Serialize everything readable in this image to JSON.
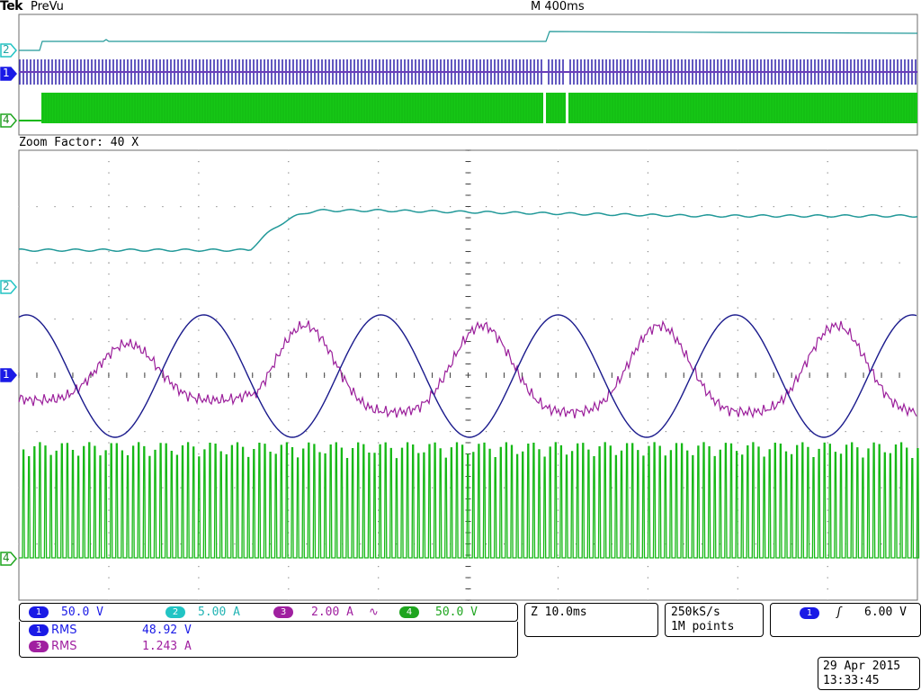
{
  "header": {
    "brand": "Tek",
    "mode": "PreVu",
    "timebase": "M 400ms"
  },
  "zoom": {
    "label": "Zoom Factor: 40 X"
  },
  "markers": {
    "overview": [
      "2",
      "1",
      "4"
    ],
    "zoom": [
      "2",
      "1",
      "4"
    ]
  },
  "channels": [
    {
      "num": "1",
      "scale": "50.0 V",
      "color": "#1a1ae6"
    },
    {
      "num": "2",
      "scale": "5.00 A",
      "color": "#22c4c4"
    },
    {
      "num": "3",
      "scale": "2.00 A",
      "extra": "∿",
      "color": "#a020a0"
    },
    {
      "num": "4",
      "scale": "50.0 V",
      "color": "#1fa51f"
    }
  ],
  "measurements": [
    {
      "num": "1",
      "type": "RMS",
      "value": "48.92 V",
      "color": "#1a1ae6"
    },
    {
      "num": "3",
      "type": "RMS",
      "value": "1.243 A",
      "color": "#a020a0"
    }
  ],
  "zoom_time": "Z 10.0ms",
  "acquisition": {
    "rate": "250kS/s",
    "points": "1M points"
  },
  "trigger": {
    "source": "1",
    "slope": "ʃ",
    "level": "6.00 V",
    "color": "#1a1ae6"
  },
  "datetime": {
    "date": "29 Apr  2015",
    "time": "13:33:45"
  },
  "colors": {
    "ch1_trace": "#1a1a8c",
    "ch2_trace": "#229999",
    "ch3_trace": "#9b1f9b",
    "ch4_trace": "#16b816",
    "trigger_marker": "#f5a000"
  }
}
